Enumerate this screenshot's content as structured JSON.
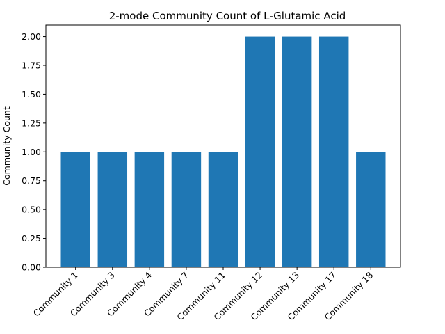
{
  "chart_data": {
    "type": "bar",
    "title": "2-mode Community Count of L-Glutamic Acid",
    "xlabel": "",
    "ylabel": "Community Count",
    "categories": [
      "Community 1",
      "Community 3",
      "Community 4",
      "Community 7",
      "Community 11",
      "Community 12",
      "Community 13",
      "Community 17",
      "Community 18"
    ],
    "values": [
      1,
      1,
      1,
      1,
      1,
      2,
      2,
      2,
      1
    ],
    "ylim": [
      0,
      2.1
    ],
    "yticks": [
      "0.00",
      "0.25",
      "0.50",
      "0.75",
      "1.00",
      "1.25",
      "1.50",
      "1.75",
      "2.00"
    ],
    "bar_color": "#1f77b4",
    "grid": false,
    "legend": false
  }
}
